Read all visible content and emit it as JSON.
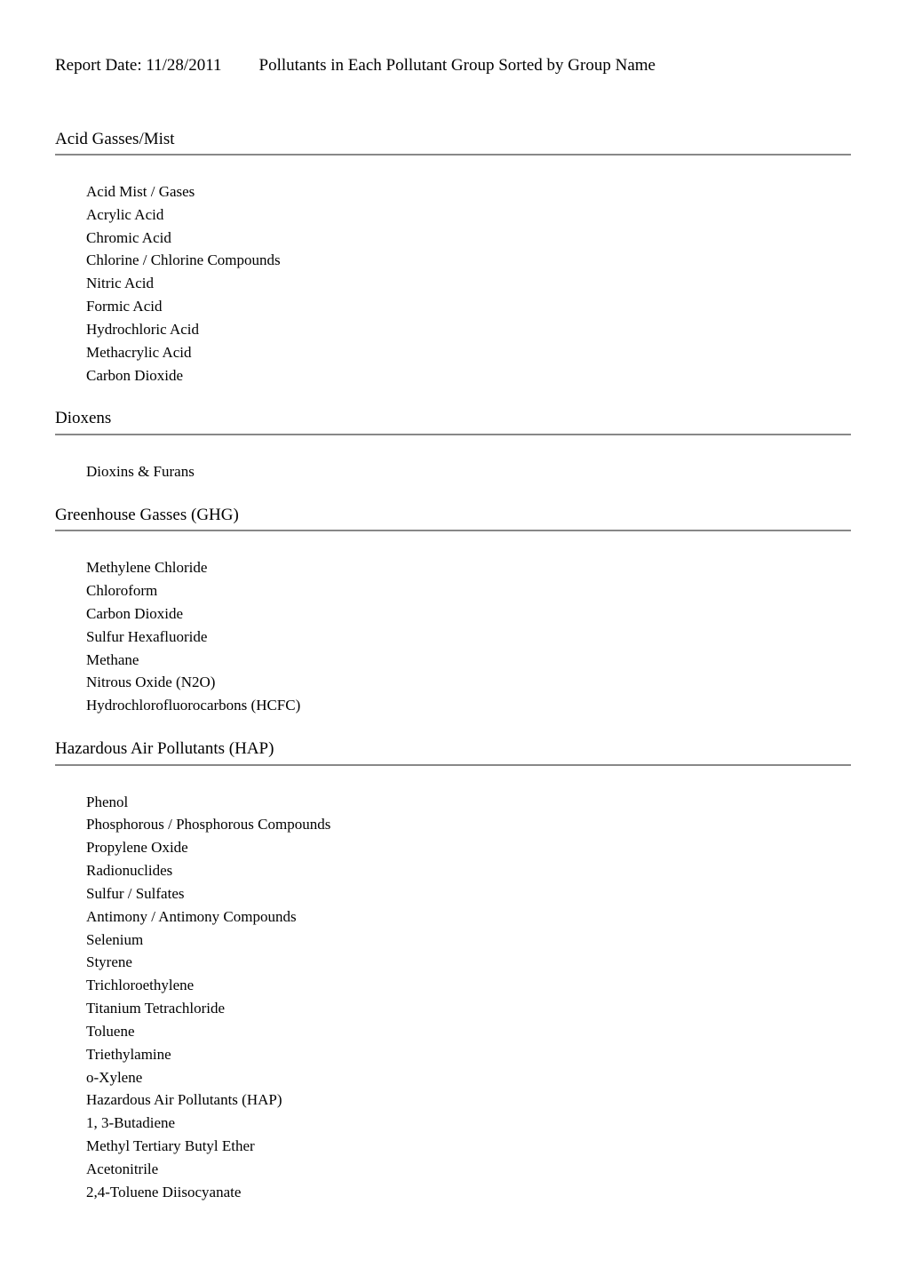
{
  "header": {
    "report_date_label": "Report Date: 11/28/2011",
    "title": "Pollutants in Each Pollutant Group Sorted by Group Name"
  },
  "groups": [
    {
      "name": "Acid Gasses/Mist",
      "items": [
        "Acid Mist / Gases",
        "Acrylic Acid",
        "Chromic Acid",
        "Chlorine / Chlorine Compounds",
        "Nitric Acid",
        "Formic Acid",
        "Hydrochloric Acid",
        "Methacrylic Acid",
        "Carbon Dioxide"
      ]
    },
    {
      "name": "Dioxens",
      "items": [
        "Dioxins & Furans"
      ]
    },
    {
      "name": "Greenhouse Gasses (GHG)",
      "items": [
        "Methylene Chloride",
        "Chloroform",
        "Carbon Dioxide",
        "Sulfur Hexafluoride",
        "Methane",
        "Nitrous Oxide (N2O)",
        "Hydrochlorofluorocarbons (HCFC)"
      ]
    },
    {
      "name": "Hazardous Air Pollutants (HAP)",
      "items": [
        "Phenol",
        "Phosphorous / Phosphorous Compounds",
        "Propylene Oxide",
        "Radionuclides",
        "Sulfur / Sulfates",
        "Antimony / Antimony Compounds",
        "Selenium",
        "Styrene",
        "Trichloroethylene",
        "Titanium Tetrachloride",
        "Toluene",
        "Triethylamine",
        "o-Xylene",
        "Hazardous Air Pollutants (HAP)",
        "1, 3-Butadiene",
        "Methyl Tertiary Butyl Ether",
        "Acetonitrile",
        "2,4-Toluene Diisocyanate"
      ]
    }
  ],
  "styles": {
    "background_color": "#ffffff",
    "text_color": "#000000",
    "border_color": "#888888",
    "heading_fontsize": 19,
    "body_fontsize": 17,
    "font_family": "Times New Roman"
  }
}
